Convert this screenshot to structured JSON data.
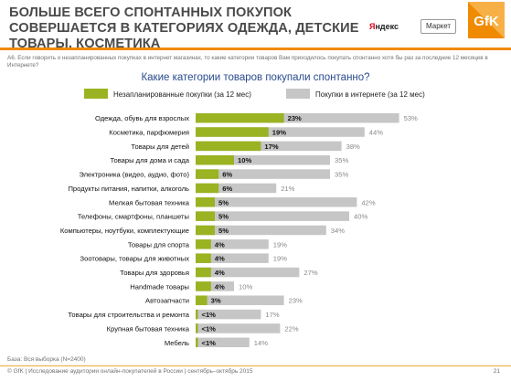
{
  "header": {
    "title": "БОЛЬШЕ ВСЕГО СПОНТАННЫХ ПОКУПОК СОВЕРШАЕТСЯ В КАТЕГОРИЯХ ОДЕЖДА, ДЕТСКИЕ ТОВАРЫ, КОСМЕТИКА",
    "yandex_logo_text": "Яндекс",
    "market_logo_text": "Маркет",
    "gfk_logo_text": "GfK",
    "brand_colors": {
      "accent": "#f08a00",
      "yandex_red": "#e3001b"
    }
  },
  "question_note": "A6. Если говорить о незапланированных покупках в интернет магазинах, то какие категории товаров Вам приходилось покупать спонтанно хотя бы раз за последние 12 месяцев в Интернете?",
  "footer": {
    "base_note": "База: Вся выборка (N=2400)",
    "source_text": "© GfK | Исследование аудитории онлайн-покупателей в России | сентябрь–октябрь 2015",
    "page_number": "21"
  },
  "chart_data": {
    "type": "bar",
    "orientation": "horizontal",
    "title": "Какие категории товаров покупали спонтанно?",
    "legend_placement": "top",
    "grid": false,
    "xlim": [
      0,
      60
    ],
    "categories": [
      "Одежда, обувь для взрослых",
      "Косметика, парфюмерия",
      "Товары для детей",
      "Товары для дома и сада",
      "Электроника (видео, аудио, фото)",
      "Продукты питания, напитки, алкоголь",
      "Мелкая бытовая техника",
      "Телефоны, смартфоны, планшеты",
      "Компьютеры, ноутбуки, комплектующие",
      "Товары для спорта",
      "Зоотовары, товары для животных",
      "Товары для здоровья",
      "Handmade товары",
      "Автозапчасти",
      "Товары для строительства и ремонта",
      "Крупная бытовая техника",
      "Мебель"
    ],
    "series": [
      {
        "name": "Незапланированные покупки (за 12 мес)",
        "color": "#9ab322",
        "values": [
          23,
          19,
          17,
          10,
          6,
          6,
          5,
          5,
          5,
          4,
          4,
          4,
          4,
          3,
          0.6,
          0.6,
          0.6
        ],
        "labels": [
          "23%",
          "19%",
          "17%",
          "10%",
          "6%",
          "6%",
          "5%",
          "5%",
          "5%",
          "4%",
          "4%",
          "4%",
          "4%",
          "3%",
          "<1%",
          "<1%",
          "<1%"
        ]
      },
      {
        "name": "Покупки в интернете (за 12 мес)",
        "color": "#c6c6c6",
        "values": [
          53,
          44,
          38,
          35,
          35,
          21,
          42,
          40,
          34,
          19,
          19,
          27,
          10,
          23,
          17,
          22,
          14
        ],
        "labels": [
          "53%",
          "44%",
          "38%",
          "35%",
          "35%",
          "21%",
          "42%",
          "40%",
          "34%",
          "19%",
          "19%",
          "27%",
          "10%",
          "23%",
          "17%",
          "22%",
          "14%"
        ]
      }
    ]
  }
}
